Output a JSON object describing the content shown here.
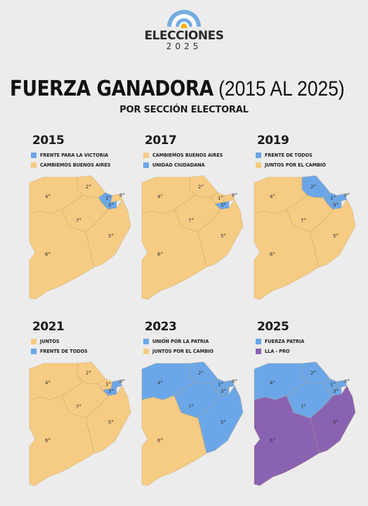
{
  "logo": {
    "title": "ELECCIONES",
    "year": "2025",
    "flag_colors": [
      "#74acdf",
      "#ffffff",
      "#f6b40e"
    ]
  },
  "header": {
    "title_bold": "FUERZA GANADORA",
    "title_rest": "(2015 AL 2025)",
    "subtitle": "POR SECCIÓN ELECTORAL"
  },
  "colors": {
    "blue": "#6ba7e8",
    "yellow": "#f6cb83",
    "purple": "#8a62b2"
  },
  "section_labels": [
    "1°",
    "2°",
    "3°",
    "4°",
    "5°",
    "6°",
    "7°",
    "8°"
  ],
  "panels": [
    {
      "year": "2015",
      "legend": [
        {
          "label": "FRENTE PARA LA VICTORIA",
          "color": "#6ba7e8"
        },
        {
          "label": "CAMBIEMOS BUENOS AIRES",
          "color": "#f6cb83"
        }
      ],
      "sections": {
        "1": "#6ba7e8",
        "2": "#f6cb83",
        "3": "#6ba7e8",
        "4": "#f6cb83",
        "5": "#f6cb83",
        "6": "#f6cb83",
        "7": "#f6cb83",
        "8": "#f6cb83"
      }
    },
    {
      "year": "2017",
      "legend": [
        {
          "label": "CAMBIEMOS BUENOS AIRES",
          "color": "#f6cb83"
        },
        {
          "label": "UNIDAD CIUDADANA",
          "color": "#6ba7e8"
        }
      ],
      "sections": {
        "1": "#f6cb83",
        "2": "#f6cb83",
        "3": "#6ba7e8",
        "4": "#f6cb83",
        "5": "#f6cb83",
        "6": "#f6cb83",
        "7": "#f6cb83",
        "8": "#f6cb83"
      }
    },
    {
      "year": "2019",
      "legend": [
        {
          "label": "FRENTE DE TODOS",
          "color": "#6ba7e8"
        },
        {
          "label": "JUNTOS POR EL CAMBIO",
          "color": "#f6cb83"
        }
      ],
      "sections": {
        "1": "#6ba7e8",
        "2": "#6ba7e8",
        "3": "#6ba7e8",
        "4": "#f6cb83",
        "5": "#f6cb83",
        "6": "#f6cb83",
        "7": "#f6cb83",
        "8": "#6ba7e8"
      }
    },
    {
      "year": "2021",
      "legend": [
        {
          "label": "JUNTOS",
          "color": "#f6cb83"
        },
        {
          "label": "FRENTE DE TODOS",
          "color": "#6ba7e8"
        }
      ],
      "sections": {
        "1": "#f6cb83",
        "2": "#f6cb83",
        "3": "#6ba7e8",
        "4": "#f6cb83",
        "5": "#f6cb83",
        "6": "#f6cb83",
        "7": "#f6cb83",
        "8": "#6ba7e8"
      }
    },
    {
      "year": "2023",
      "legend": [
        {
          "label": "UNIÓN POR LA PATRIA",
          "color": "#6ba7e8"
        },
        {
          "label": "JUNTOS POR EL CAMBIO",
          "color": "#f6cb83"
        }
      ],
      "sections": {
        "1": "#6ba7e8",
        "2": "#6ba7e8",
        "3": "#6ba7e8",
        "4": "#6ba7e8",
        "5": "#6ba7e8",
        "6": "#f6cb83",
        "7": "#6ba7e8",
        "8": "#6ba7e8"
      }
    },
    {
      "year": "2025",
      "legend": [
        {
          "label": "FUERZA PATRIA",
          "color": "#6ba7e8"
        },
        {
          "label": "LLA - PRO",
          "color": "#8a62b2"
        }
      ],
      "sections": {
        "1": "#6ba7e8",
        "2": "#6ba7e8",
        "3": "#6ba7e8",
        "4": "#6ba7e8",
        "5": "#8a62b2",
        "6": "#8a62b2",
        "7": "#6ba7e8",
        "8": "#6ba7e8"
      }
    }
  ]
}
